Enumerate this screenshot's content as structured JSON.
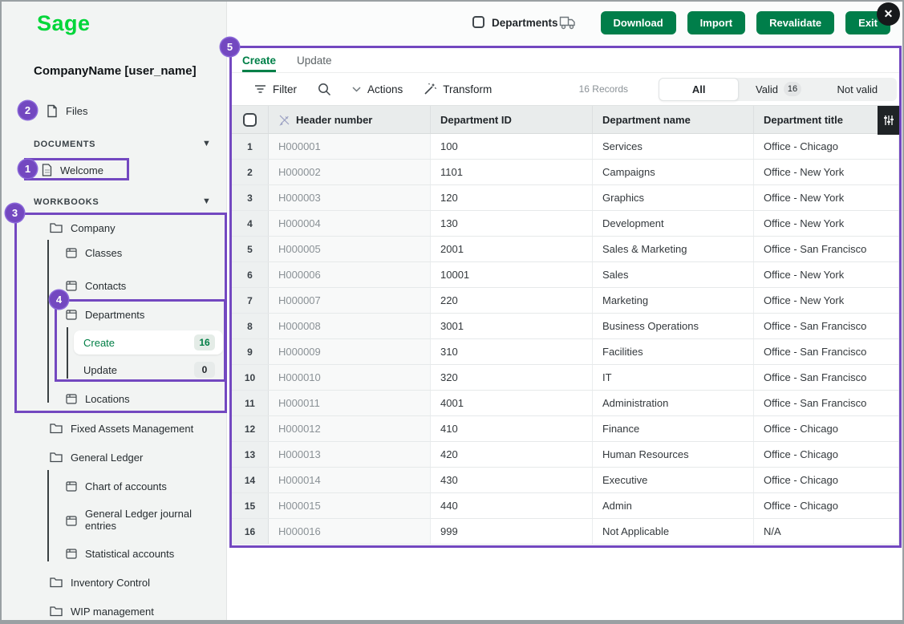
{
  "brand": {
    "logo_text": "Sage",
    "logo_color": "#00d639"
  },
  "sidebar": {
    "company_label": "CompanyName [user_name]",
    "files_label": "Files",
    "sections": {
      "documents": "DOCUMENTS",
      "workbooks": "WORKBOOKS"
    },
    "documents": {
      "welcome": "Welcome"
    },
    "tree": {
      "company": "Company",
      "classes": "Classes",
      "contacts": "Contacts",
      "departments": "Departments",
      "create": {
        "label": "Create",
        "badge": "16"
      },
      "update": {
        "label": "Update",
        "badge": "0"
      },
      "locations": "Locations",
      "fixed_assets": "Fixed Assets Management",
      "general_ledger": "General Ledger",
      "chart_of_accounts": "Chart of accounts",
      "gl_journal_entries": "General Ledger journal entries",
      "statistical_accounts": "Statistical accounts",
      "inventory_control": "Inventory Control",
      "wip_management": "WIP management"
    }
  },
  "header": {
    "title": "Departments",
    "buttons": [
      "Download",
      "Import",
      "Revalidate",
      "Exit"
    ],
    "close_glyph": "✕"
  },
  "tabs": {
    "create": "Create",
    "update": "Update"
  },
  "toolbar": {
    "filter": "Filter",
    "actions": "Actions",
    "transform": "Transform",
    "records": "16 Records",
    "segments": {
      "all": "All",
      "valid": "Valid",
      "valid_badge": "16",
      "not_valid": "Not valid"
    }
  },
  "table": {
    "columns": [
      "Header number",
      "Department ID",
      "Department name",
      "Department title"
    ],
    "rows": [
      [
        "1",
        "H000001",
        "100",
        "Services",
        "Office - Chicago"
      ],
      [
        "2",
        "H000002",
        "1101",
        "Campaigns",
        "Office - New York"
      ],
      [
        "3",
        "H000003",
        "120",
        "Graphics",
        "Office - New York"
      ],
      [
        "4",
        "H000004",
        "130",
        "Development",
        "Office - New York"
      ],
      [
        "5",
        "H000005",
        "2001",
        "Sales & Marketing",
        "Office - San Francisco"
      ],
      [
        "6",
        "H000006",
        "10001",
        "Sales",
        "Office - New York"
      ],
      [
        "7",
        "H000007",
        "220",
        "Marketing",
        "Office - New York"
      ],
      [
        "8",
        "H000008",
        "3001",
        "Business Operations",
        "Office - San Francisco"
      ],
      [
        "9",
        "H000009",
        "310",
        "Facilities",
        "Office - San Francisco"
      ],
      [
        "10",
        "H000010",
        "320",
        "IT",
        "Office - San Francisco"
      ],
      [
        "11",
        "H000011",
        "4001",
        "Administration",
        "Office - San Francisco"
      ],
      [
        "12",
        "H000012",
        "410",
        "Finance",
        "Office - Chicago"
      ],
      [
        "13",
        "H000013",
        "420",
        "Human Resources",
        "Office - Chicago"
      ],
      [
        "14",
        "H000014",
        "430",
        "Executive",
        "Office - Chicago"
      ],
      [
        "15",
        "H000015",
        "440",
        "Admin",
        "Office - Chicago"
      ],
      [
        "16",
        "H000016",
        "999",
        "Not Applicable",
        "N/A"
      ]
    ]
  },
  "annotations": {
    "labels": [
      "1",
      "2",
      "3",
      "4",
      "5"
    ]
  },
  "colors": {
    "accent_purple": "#7348c0",
    "brand_green": "#00d639",
    "button_green": "#007e4a",
    "tab_green": "#008048"
  }
}
